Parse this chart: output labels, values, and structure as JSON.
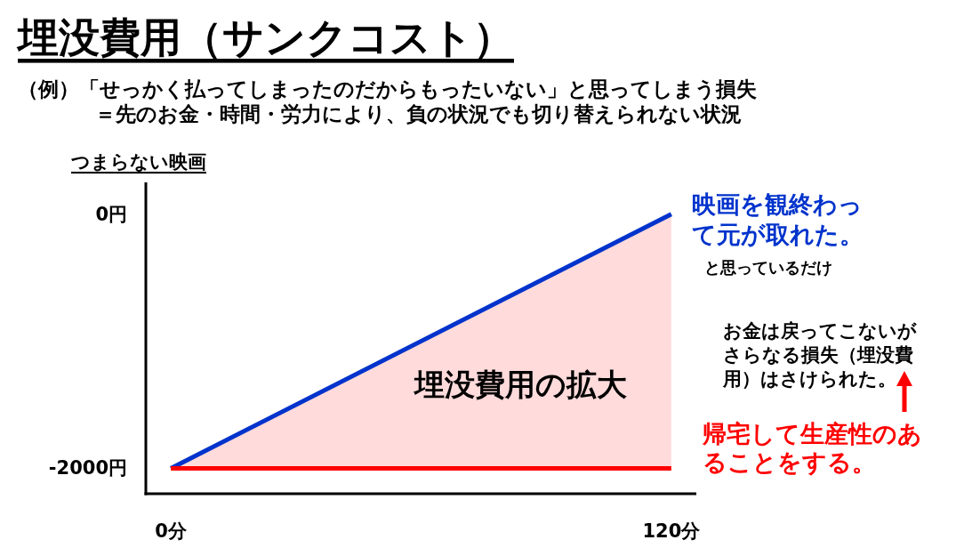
{
  "chart_data": {
    "type": "line",
    "title": "埋没費用（サンクコスト）",
    "subtitle": "（例）「せっかく払ってしまったのだからもったいない」と思ってしまう損失＝先のお金・時間・労力により、負の状況でも切り替えられない状況",
    "x": [
      0,
      120
    ],
    "series": [
      {
        "name": "映画を観終わって元が取れた。",
        "color": "#0033cc",
        "values": [
          -2000,
          0
        ]
      },
      {
        "name": "帰宅して生産性のあることをする。",
        "color": "#ff0000",
        "values": [
          -2000,
          -2000
        ],
        "lower": [
          -2000,
          -2000
        ],
        "upper": [
          -2000,
          0
        ]
      }
    ],
    "xlim": [
      -6,
      126
    ],
    "ylim": [
      -2200,
      250
    ],
    "xticks": [
      {
        "value": 0,
        "label": "0分"
      },
      {
        "value": 120,
        "label": "120分"
      }
    ],
    "yticks": [
      {
        "value": -2000,
        "label": "-2000円"
      },
      {
        "value": 0,
        "label": "0円"
      }
    ],
    "annotations": [
      "つまらない映画",
      "埋没費用の拡大",
      "と思っているだけ",
      "お金は戻ってこないがさらなる損失（埋没費用）はさけられた。"
    ]
  }
}
